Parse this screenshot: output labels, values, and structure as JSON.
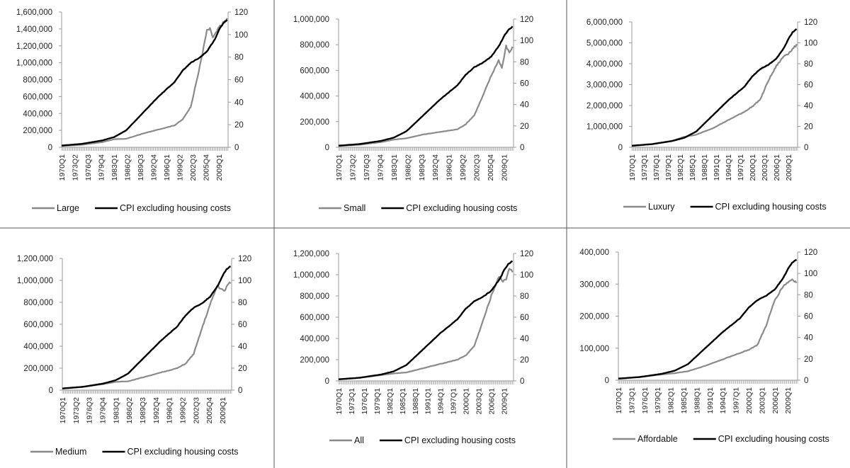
{
  "figure": {
    "colors": {
      "house_price": "#8a8a8a",
      "cpi": "#000000",
      "axis": "#9a9a9a",
      "divider": "#555555"
    }
  },
  "chart_data": [
    {
      "type": "line",
      "x_ticks": [
        "1970Q1",
        "1973Q2",
        "1976Q3",
        "1979Q4",
        "1983Q1",
        "1986Q2",
        "1989Q3",
        "1992Q4",
        "1996Q1",
        "1999Q2",
        "2002Q3",
        "2005Q4",
        "2009Q1"
      ],
      "y_left": {
        "ylim": [
          0,
          1600000
        ],
        "ticks": [
          "0",
          "200,000",
          "400,000",
          "600,000",
          "800,000",
          "1,000,000",
          "1,200,000",
          "1,400,000",
          "1,600,000"
        ]
      },
      "y_right": {
        "ylim": [
          0,
          120
        ],
        "ticks": [
          "0",
          "20",
          "40",
          "60",
          "80",
          "100",
          "120"
        ]
      },
      "legend_position": "bottom",
      "series": [
        {
          "name": "Large",
          "axis": "left",
          "color": "#8a8a8a",
          "x": [
            "1970Q1",
            "1975Q1",
            "1980Q1",
            "1983Q1",
            "1986Q1",
            "1990Q1",
            "1994Q1",
            "1998Q1",
            "2000Q1",
            "2002Q1",
            "2004Q1",
            "2005Q2",
            "2006Q1",
            "2006Q4",
            "2007Q3",
            "2008Q2",
            "2009Q1",
            "2010Q1",
            "2011Q1"
          ],
          "values": [
            15000,
            30000,
            60000,
            95000,
            100000,
            160000,
            210000,
            260000,
            330000,
            480000,
            900000,
            1200000,
            1380000,
            1400000,
            1300000,
            1350000,
            1420000,
            1470000,
            1520000
          ]
        },
        {
          "name": "CPI excluding housing costs",
          "axis": "right",
          "color": "#000000",
          "x": [
            "1970Q1",
            "1975Q1",
            "1980Q1",
            "1983Q1",
            "1986Q1",
            "1990Q1",
            "1994Q1",
            "1998Q1",
            "2000Q1",
            "2002Q1",
            "2004Q1",
            "2006Q1",
            "2008Q1",
            "2009Q1",
            "2010Q1",
            "2011Q1"
          ],
          "values": [
            1.5,
            3,
            6,
            9,
            15,
            30,
            45,
            58,
            68,
            75,
            79,
            85,
            96,
            104,
            110,
            113
          ]
        }
      ]
    },
    {
      "type": "line",
      "x_ticks": [
        "1970Q1",
        "1973Q2",
        "1976Q3",
        "1979Q4",
        "1983Q1",
        "1986Q2",
        "1989Q3",
        "1992Q4",
        "1996Q1",
        "1999Q2",
        "2002Q3",
        "2005Q4",
        "2009Q1"
      ],
      "y_left": {
        "ylim": [
          0,
          1000000
        ],
        "ticks": [
          "0",
          "200,000",
          "400,000",
          "600,000",
          "800,000",
          "1,000,000"
        ]
      },
      "y_right": {
        "ylim": [
          0,
          120
        ],
        "ticks": [
          "0",
          "20",
          "40",
          "60",
          "80",
          "100",
          "120"
        ]
      },
      "legend_position": "bottom",
      "series": [
        {
          "name": "Small",
          "axis": "left",
          "color": "#8a8a8a",
          "x": [
            "1970Q1",
            "1975Q1",
            "1980Q1",
            "1983Q1",
            "1986Q1",
            "1990Q1",
            "1994Q1",
            "1998Q1",
            "2000Q1",
            "2002Q1",
            "2004Q1",
            "2006Q1",
            "2007Q4",
            "2008Q3",
            "2009Q1",
            "2009Q3",
            "2010Q2",
            "2011Q1"
          ],
          "values": [
            10000,
            20000,
            40000,
            60000,
            70000,
            100000,
            120000,
            140000,
            180000,
            250000,
            400000,
            560000,
            680000,
            620000,
            700000,
            790000,
            740000,
            780000
          ]
        },
        {
          "name": "CPI excluding housing costs",
          "axis": "right",
          "color": "#000000",
          "x": [
            "1970Q1",
            "1975Q1",
            "1980Q1",
            "1983Q1",
            "1986Q1",
            "1990Q1",
            "1994Q1",
            "1998Q1",
            "2000Q1",
            "2002Q1",
            "2004Q1",
            "2006Q1",
            "2008Q1",
            "2009Q1",
            "2010Q1",
            "2011Q1"
          ],
          "values": [
            1.5,
            3,
            6,
            9,
            15,
            30,
            45,
            58,
            68,
            75,
            79,
            85,
            96,
            104,
            110,
            113
          ]
        }
      ]
    },
    {
      "type": "line",
      "x_ticks": [
        "1970Q1",
        "1973Q1",
        "1976Q1",
        "1979Q1",
        "1982Q1",
        "1985Q1",
        "1988Q1",
        "1991Q1",
        "1994Q1",
        "1997Q1",
        "2000Q1",
        "2003Q1",
        "2006Q1",
        "2009Q1"
      ],
      "y_left": {
        "ylim": [
          0,
          6000000
        ],
        "ticks": [
          "0",
          "1,000,000",
          "2,000,000",
          "3,000,000",
          "4,000,000",
          "5,000,000",
          "6,000,000"
        ]
      },
      "y_right": {
        "ylim": [
          0,
          120
        ],
        "ticks": [
          "0",
          "20",
          "40",
          "60",
          "80",
          "100",
          "120"
        ]
      },
      "legend_position": "bottom",
      "series": [
        {
          "name": "Luxury",
          "axis": "left",
          "color": "#8a8a8a",
          "x": [
            "1970Q1",
            "1975Q1",
            "1980Q1",
            "1983Q1",
            "1986Q1",
            "1990Q1",
            "1994Q1",
            "1998Q1",
            "2000Q1",
            "2002Q1",
            "2004Q1",
            "2006Q1",
            "2008Q1",
            "2009Q1",
            "2010Q1",
            "2011Q1"
          ],
          "values": [
            60000,
            150000,
            300000,
            500000,
            600000,
            900000,
            1300000,
            1700000,
            1950000,
            2300000,
            3200000,
            3900000,
            4400000,
            4500000,
            4700000,
            4900000
          ]
        },
        {
          "name": "CPI excluding housing costs",
          "axis": "right",
          "color": "#000000",
          "x": [
            "1970Q1",
            "1975Q1",
            "1980Q1",
            "1983Q1",
            "1986Q1",
            "1990Q1",
            "1994Q1",
            "1998Q1",
            "2000Q1",
            "2002Q1",
            "2004Q1",
            "2006Q1",
            "2008Q1",
            "2009Q1",
            "2010Q1",
            "2011Q1"
          ],
          "values": [
            1.5,
            3,
            6,
            9,
            15,
            30,
            45,
            58,
            68,
            75,
            79,
            85,
            96,
            104,
            110,
            113
          ]
        }
      ]
    },
    {
      "type": "line",
      "x_ticks": [
        "1970Q1",
        "1973Q2",
        "1976Q3",
        "1979Q4",
        "1983Q1",
        "1986Q2",
        "1989Q3",
        "1992Q4",
        "1996Q1",
        "1999Q2",
        "2002Q3",
        "2005Q4",
        "2009Q1"
      ],
      "y_left": {
        "ylim": [
          0,
          1200000
        ],
        "ticks": [
          "0",
          "200,000",
          "400,000",
          "600,000",
          "800,000",
          "1,000,000",
          "1,200,000"
        ]
      },
      "y_right": {
        "ylim": [
          0,
          120
        ],
        "ticks": [
          "0",
          "20",
          "40",
          "60",
          "80",
          "100",
          "120"
        ]
      },
      "legend_position": "bottom",
      "series": [
        {
          "name": "Medium",
          "axis": "left",
          "color": "#8a8a8a",
          "x": [
            "1970Q1",
            "1975Q1",
            "1980Q1",
            "1983Q1",
            "1986Q1",
            "1990Q1",
            "1994Q1",
            "1998Q1",
            "2000Q1",
            "2002Q1",
            "2004Q1",
            "2006Q1",
            "2007Q4",
            "2008Q4",
            "2009Q3",
            "2010Q2",
            "2011Q1"
          ],
          "values": [
            15000,
            30000,
            55000,
            75000,
            80000,
            120000,
            160000,
            200000,
            240000,
            330000,
            560000,
            780000,
            950000,
            920000,
            900000,
            960000,
            980000
          ]
        },
        {
          "name": "CPI excluding housing costs",
          "axis": "right",
          "color": "#000000",
          "x": [
            "1970Q1",
            "1975Q1",
            "1980Q1",
            "1983Q1",
            "1986Q1",
            "1990Q1",
            "1994Q1",
            "1998Q1",
            "2000Q1",
            "2002Q1",
            "2004Q1",
            "2006Q1",
            "2008Q1",
            "2009Q1",
            "2010Q1",
            "2011Q1"
          ],
          "values": [
            1.5,
            3,
            6,
            9,
            15,
            30,
            45,
            58,
            68,
            75,
            79,
            85,
            96,
            104,
            110,
            113
          ]
        }
      ]
    },
    {
      "type": "line",
      "x_ticks": [
        "1970Q1",
        "1973Q1",
        "1976Q1",
        "1979Q1",
        "1982Q1",
        "1985Q1",
        "1988Q1",
        "1991Q1",
        "1994Q1",
        "1997Q1",
        "2000Q1",
        "2003Q1",
        "2006Q1",
        "2009Q1"
      ],
      "y_left": {
        "ylim": [
          0,
          1200000
        ],
        "ticks": [
          "0",
          "200,000",
          "400,000",
          "600,000",
          "800,000",
          "1,000,000",
          "1,200,000"
        ]
      },
      "y_right": {
        "ylim": [
          0,
          120
        ],
        "ticks": [
          "0",
          "20",
          "40",
          "60",
          "80",
          "100",
          "120"
        ]
      },
      "legend_position": "bottom",
      "series": [
        {
          "name": "All",
          "axis": "left",
          "color": "#8a8a8a",
          "x": [
            "1970Q1",
            "1975Q1",
            "1980Q1",
            "1983Q1",
            "1986Q1",
            "1990Q1",
            "1994Q1",
            "1998Q1",
            "2000Q1",
            "2002Q1",
            "2004Q1",
            "2006Q1",
            "2007Q4",
            "2008Q4",
            "2009Q3",
            "2010Q2",
            "2011Q1"
          ],
          "values": [
            15000,
            30000,
            55000,
            70000,
            80000,
            120000,
            160000,
            200000,
            240000,
            330000,
            560000,
            800000,
            980000,
            940000,
            960000,
            1060000,
            1030000
          ]
        },
        {
          "name": "CPI excluding housing costs",
          "axis": "right",
          "color": "#000000",
          "x": [
            "1970Q1",
            "1975Q1",
            "1980Q1",
            "1983Q1",
            "1986Q1",
            "1990Q1",
            "1994Q1",
            "1998Q1",
            "2000Q1",
            "2002Q1",
            "2004Q1",
            "2006Q1",
            "2008Q1",
            "2009Q1",
            "2010Q1",
            "2011Q1"
          ],
          "values": [
            1.5,
            3,
            6,
            9,
            15,
            30,
            45,
            58,
            68,
            75,
            79,
            85,
            96,
            104,
            110,
            113
          ]
        }
      ]
    },
    {
      "type": "line",
      "x_ticks": [
        "1970Q1",
        "1973Q1",
        "1976Q1",
        "1979Q1",
        "1982Q1",
        "1985Q1",
        "1988Q1",
        "1991Q1",
        "1994Q1",
        "1997Q1",
        "2000Q1",
        "2003Q1",
        "2006Q1",
        "2009Q1"
      ],
      "y_left": {
        "ylim": [
          0,
          400000
        ],
        "ticks": [
          "0",
          "100,000",
          "200,000",
          "300,000",
          "400,000"
        ]
      },
      "y_right": {
        "ylim": [
          0,
          120
        ],
        "ticks": [
          "0",
          "20",
          "40",
          "60",
          "80",
          "100",
          "120"
        ]
      },
      "legend_position": "bottom",
      "series": [
        {
          "name": "Affordable",
          "axis": "left",
          "color": "#8a8a8a",
          "x": [
            "1970Q1",
            "1975Q1",
            "1980Q1",
            "1983Q1",
            "1986Q1",
            "1990Q1",
            "1994Q1",
            "1998Q1",
            "2000Q1",
            "2002Q1",
            "2004Q1",
            "2006Q1",
            "2008Q1",
            "2009Q1",
            "2010Q1",
            "2011Q1"
          ],
          "values": [
            5000,
            10000,
            18000,
            22000,
            28000,
            45000,
            65000,
            85000,
            95000,
            110000,
            170000,
            250000,
            295000,
            305000,
            315000,
            305000
          ]
        },
        {
          "name": "CPI excluding housing costs",
          "axis": "right",
          "color": "#000000",
          "x": [
            "1970Q1",
            "1975Q1",
            "1980Q1",
            "1983Q1",
            "1986Q1",
            "1990Q1",
            "1994Q1",
            "1998Q1",
            "2000Q1",
            "2002Q1",
            "2004Q1",
            "2006Q1",
            "2008Q1",
            "2009Q1",
            "2010Q1",
            "2011Q1"
          ],
          "values": [
            1.5,
            3,
            6,
            9,
            15,
            30,
            45,
            58,
            68,
            75,
            79,
            85,
            96,
            104,
            110,
            113
          ]
        }
      ]
    }
  ]
}
